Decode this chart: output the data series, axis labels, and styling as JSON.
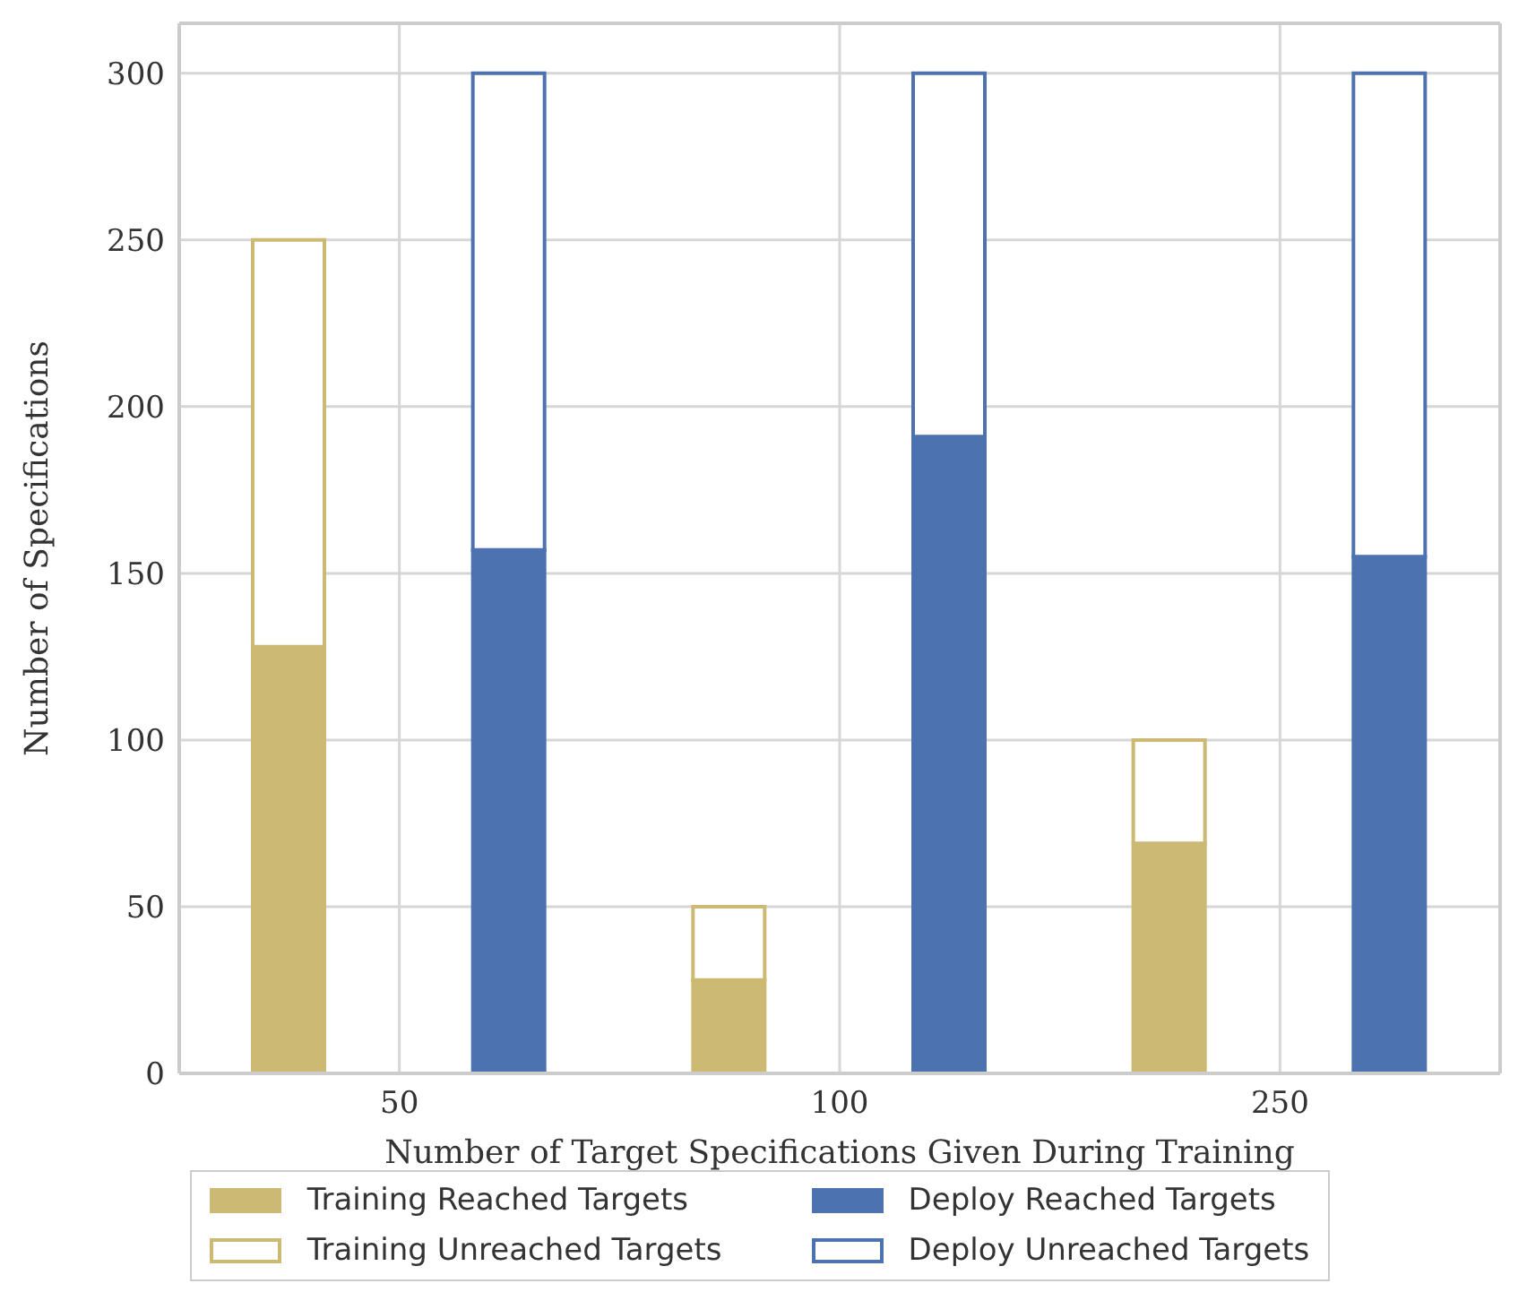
{
  "chart_data": {
    "type": "bar",
    "xlabel": "Number of Target Specifications Given During Training",
    "ylabel": "Number of Specifications",
    "categories": [
      "50",
      null,
      "100",
      null,
      "250",
      null
    ],
    "stacked": true,
    "grid": true,
    "legend": "bottom",
    "ylim": [
      0,
      315
    ],
    "yticks": [
      0,
      50,
      100,
      150,
      200,
      250,
      300
    ],
    "series": [
      {
        "name": "Training Reached Targets",
        "color": "#ccb974",
        "values": [
          128,
          null,
          28,
          null,
          69,
          null
        ]
      },
      {
        "name": "Training Unreached Targets",
        "color": "#ccb974",
        "values": [
          122,
          null,
          22,
          null,
          31,
          null
        ]
      },
      {
        "name": "Deploy Reached Targets",
        "color": "#4c72b0",
        "values": [
          null,
          157,
          null,
          191,
          null,
          155
        ]
      },
      {
        "name": "Deploy Unreached Targets",
        "color": "#4c72b0",
        "values": [
          null,
          143,
          null,
          109,
          null,
          145
        ]
      }
    ]
  }
}
